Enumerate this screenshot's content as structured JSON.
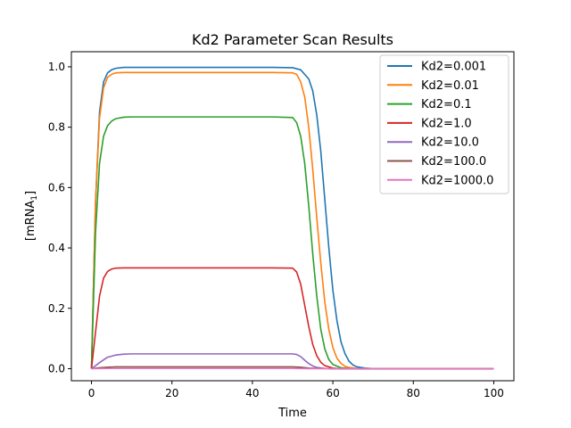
{
  "chart_data": {
    "type": "line",
    "title": "Kd2 Parameter Scan Results",
    "xlabel": "Time",
    "ylabel_main": "[mRNA",
    "ylabel_sub": "1",
    "ylabel_end": "]",
    "xlim": [
      -5,
      105
    ],
    "ylim": [
      -0.04,
      1.05
    ],
    "xticks": [
      0,
      20,
      40,
      60,
      80,
      100
    ],
    "xtick_labels": [
      "0",
      "20",
      "40",
      "60",
      "80",
      "100"
    ],
    "yticks": [
      0.0,
      0.2,
      0.4,
      0.6,
      0.8,
      1.0
    ],
    "ytick_labels": [
      "0.0",
      "0.2",
      "0.4",
      "0.6",
      "0.8",
      "1.0"
    ],
    "grid": false,
    "legend_position": "top-right",
    "series": [
      {
        "name": "Kd2=0.001",
        "color": "#1f77b4",
        "x": [
          0,
          1,
          2,
          3,
          4,
          5,
          6,
          8,
          10,
          20,
          30,
          40,
          45,
          50,
          52,
          54,
          55,
          56,
          57,
          58,
          59,
          60,
          61,
          62,
          63,
          64,
          65,
          66,
          68,
          70,
          80,
          90,
          100
        ],
        "y": [
          0.0,
          0.55,
          0.85,
          0.95,
          0.98,
          0.99,
          0.995,
          0.998,
          0.998,
          0.998,
          0.998,
          0.998,
          0.998,
          0.997,
          0.99,
          0.96,
          0.92,
          0.84,
          0.72,
          0.56,
          0.4,
          0.26,
          0.16,
          0.09,
          0.05,
          0.025,
          0.012,
          0.006,
          0.002,
          0.0,
          0.0,
          0.0,
          0.0
        ]
      },
      {
        "name": "Kd2=0.01",
        "color": "#ff7f0e",
        "x": [
          0,
          1,
          2,
          3,
          4,
          5,
          6,
          8,
          10,
          20,
          30,
          40,
          45,
          50,
          51,
          52,
          53,
          54,
          55,
          56,
          57,
          58,
          59,
          60,
          61,
          62,
          63,
          64,
          66,
          68,
          70,
          80,
          90,
          100
        ],
        "y": [
          0.0,
          0.55,
          0.83,
          0.93,
          0.965,
          0.975,
          0.98,
          0.981,
          0.981,
          0.981,
          0.981,
          0.981,
          0.981,
          0.98,
          0.975,
          0.95,
          0.9,
          0.8,
          0.66,
          0.5,
          0.35,
          0.22,
          0.13,
          0.07,
          0.035,
          0.018,
          0.008,
          0.004,
          0.001,
          0.0,
          0.0,
          0.0,
          0.0,
          0.0
        ]
      },
      {
        "name": "Kd2=0.1",
        "color": "#2ca02c",
        "x": [
          0,
          1,
          2,
          3,
          4,
          5,
          6,
          8,
          10,
          20,
          30,
          40,
          45,
          50,
          51,
          52,
          53,
          54,
          55,
          56,
          57,
          58,
          59,
          60,
          62,
          64,
          66,
          70,
          80,
          90,
          100
        ],
        "y": [
          0.0,
          0.45,
          0.68,
          0.77,
          0.805,
          0.82,
          0.828,
          0.833,
          0.834,
          0.834,
          0.834,
          0.834,
          0.834,
          0.832,
          0.815,
          0.77,
          0.68,
          0.54,
          0.38,
          0.24,
          0.13,
          0.065,
          0.03,
          0.014,
          0.003,
          0.001,
          0.0,
          0.0,
          0.0,
          0.0,
          0.0
        ]
      },
      {
        "name": "Kd2=1.0",
        "color": "#d62728",
        "x": [
          0,
          1,
          2,
          3,
          4,
          5,
          6,
          8,
          10,
          20,
          30,
          40,
          45,
          50,
          51,
          52,
          53,
          54,
          55,
          56,
          57,
          58,
          60,
          62,
          64,
          70,
          80,
          90,
          100
        ],
        "y": [
          0.0,
          0.12,
          0.24,
          0.3,
          0.322,
          0.33,
          0.333,
          0.334,
          0.334,
          0.334,
          0.334,
          0.334,
          0.334,
          0.333,
          0.32,
          0.28,
          0.21,
          0.14,
          0.08,
          0.043,
          0.021,
          0.01,
          0.002,
          0.0,
          0.0,
          0.0,
          0.0,
          0.0,
          0.0
        ]
      },
      {
        "name": "Kd2=10.0",
        "color": "#9467bd",
        "x": [
          0,
          2,
          4,
          6,
          8,
          10,
          20,
          30,
          40,
          45,
          50,
          51,
          52,
          53,
          54,
          55,
          56,
          58,
          60,
          70,
          80,
          90,
          100
        ],
        "y": [
          0.0,
          0.02,
          0.038,
          0.045,
          0.048,
          0.049,
          0.049,
          0.049,
          0.049,
          0.049,
          0.049,
          0.047,
          0.04,
          0.028,
          0.017,
          0.009,
          0.004,
          0.001,
          0.0,
          0.0,
          0.0,
          0.0,
          0.0
        ]
      },
      {
        "name": "Kd2=100.0",
        "color": "#8c564b",
        "x": [
          0,
          2,
          4,
          6,
          10,
          20,
          30,
          40,
          50,
          52,
          54,
          56,
          60,
          70,
          80,
          90,
          100
        ],
        "y": [
          0.0,
          0.003,
          0.005,
          0.006,
          0.006,
          0.006,
          0.006,
          0.006,
          0.006,
          0.005,
          0.002,
          0.001,
          0.0,
          0.0,
          0.0,
          0.0,
          0.0
        ]
      },
      {
        "name": "Kd2=1000.0",
        "color": "#e377c2",
        "x": [
          0,
          4,
          10,
          20,
          30,
          40,
          50,
          54,
          60,
          70,
          80,
          90,
          100
        ],
        "y": [
          0.0,
          0.0006,
          0.0007,
          0.0007,
          0.0007,
          0.0007,
          0.0007,
          0.0002,
          0.0,
          0.0,
          0.0,
          0.0,
          0.0
        ]
      }
    ]
  }
}
